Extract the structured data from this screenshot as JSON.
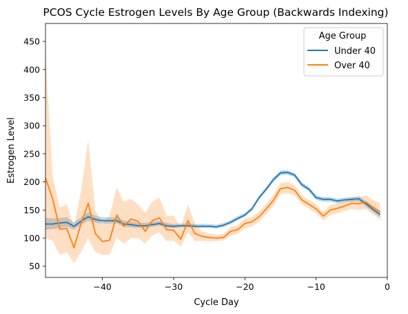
{
  "chart_data": {
    "type": "line",
    "title": "PCOS Cycle Estrogen Levels By Age Group (Backwards Indexing)",
    "xlabel": "Cycle Day",
    "ylabel": "Estrogen Level",
    "xlim": [
      -48,
      0
    ],
    "ylim": [
      30,
      482
    ],
    "x_ticks": [
      -40,
      -30,
      -20,
      -10,
      0
    ],
    "y_ticks": [
      50,
      100,
      150,
      200,
      250,
      300,
      350,
      400,
      450
    ],
    "grid": false,
    "legend": {
      "title": "Age Group",
      "placement": "top-right"
    },
    "x": [
      -48,
      -47,
      -46,
      -45,
      -44,
      -43,
      -42,
      -41,
      -40,
      -39,
      -38,
      -37,
      -36,
      -35,
      -34,
      -33,
      -32,
      -31,
      -30,
      -29,
      -28,
      -27,
      -26,
      -25,
      -24,
      -23,
      -22,
      -21,
      -20,
      -19,
      -18,
      -17,
      -16,
      -15,
      -14,
      -13,
      -12,
      -11,
      -10,
      -9,
      -8,
      -7,
      -6,
      -5,
      -4,
      -3,
      -2,
      -1
    ],
    "series": [
      {
        "name": "Under 40",
        "color": "#1f77b4",
        "values": [
          125,
          125,
          127,
          128,
          121,
          130,
          138,
          133,
          131,
          131,
          131,
          125,
          124,
          122,
          122,
          124,
          126,
          122,
          121,
          122,
          122,
          121,
          121,
          121,
          120,
          123,
          128,
          135,
          141,
          152,
          172,
          187,
          204,
          216,
          217,
          212,
          195,
          187,
          172,
          169,
          169,
          166,
          168,
          169,
          170,
          161,
          151,
          142
        ],
        "lower": [
          115,
          116,
          118,
          120,
          115,
          123,
          131,
          127,
          126,
          126,
          126,
          120,
          119,
          118,
          118,
          120,
          122,
          118,
          118,
          119,
          119,
          118,
          118,
          118,
          117,
          120,
          125,
          132,
          138,
          149,
          169,
          184,
          200,
          212,
          213,
          208,
          191,
          183,
          168,
          165,
          165,
          162,
          164,
          165,
          165,
          156,
          146,
          137
        ],
        "upper": [
          136,
          135,
          136,
          137,
          128,
          137,
          146,
          140,
          137,
          137,
          137,
          131,
          130,
          127,
          127,
          129,
          131,
          127,
          125,
          126,
          126,
          125,
          125,
          125,
          124,
          127,
          132,
          139,
          145,
          156,
          176,
          191,
          208,
          220,
          221,
          216,
          199,
          191,
          176,
          173,
          173,
          170,
          172,
          173,
          175,
          166,
          156,
          147
        ]
      },
      {
        "name": "Over 40",
        "color": "#ff7f0e",
        "values": [
          207,
          170,
          116,
          117,
          83,
          126,
          162,
          108,
          94,
          96,
          141,
          121,
          134,
          130,
          112,
          131,
          136,
          115,
          114,
          98,
          131,
          108,
          103,
          101,
          100,
          101,
          112,
          115,
          126,
          129,
          138,
          152,
          167,
          188,
          190,
          185,
          168,
          160,
          152,
          139,
          150,
          153,
          157,
          162,
          161,
          164,
          155,
          147
        ],
        "lower": [
          100,
          95,
          70,
          75,
          55,
          75,
          100,
          75,
          70,
          70,
          100,
          90,
          100,
          100,
          90,
          105,
          110,
          95,
          95,
          85,
          110,
          95,
          95,
          94,
          95,
          96,
          104,
          108,
          117,
          121,
          129,
          143,
          157,
          178,
          180,
          176,
          160,
          152,
          144,
          131,
          141,
          144,
          148,
          152,
          150,
          152,
          142,
          133
        ],
        "upper": [
          430,
          210,
          155,
          160,
          120,
          185,
          275,
          150,
          125,
          140,
          190,
          165,
          170,
          160,
          145,
          165,
          172,
          140,
          140,
          120,
          160,
          125,
          112,
          108,
          106,
          107,
          120,
          123,
          135,
          138,
          147,
          161,
          177,
          198,
          200,
          194,
          176,
          168,
          160,
          147,
          159,
          162,
          166,
          172,
          172,
          176,
          168,
          162
        ]
      }
    ]
  }
}
